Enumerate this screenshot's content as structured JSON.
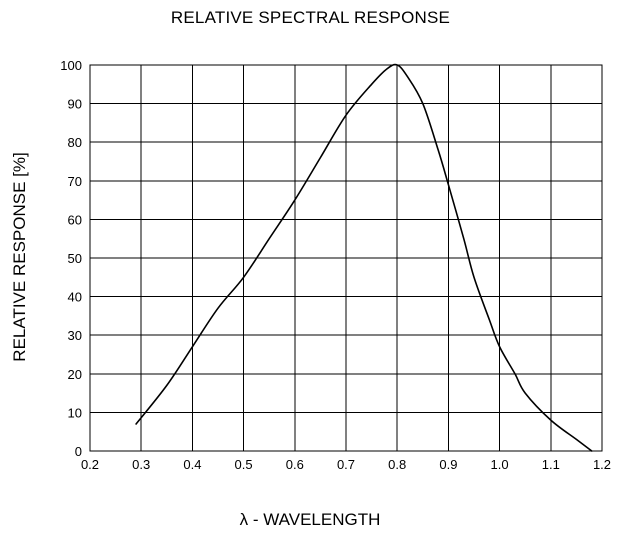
{
  "chart_data": {
    "type": "line",
    "title": "RELATIVE SPECTRAL RESPONSE",
    "xlabel": "λ  - WAVELENGTH",
    "ylabel": "RELATIVE RESPONSE [%]",
    "xlim": [
      0.2,
      1.2
    ],
    "ylim": [
      0,
      100
    ],
    "x_ticks": [
      "0.2",
      "0.3",
      "0.4",
      "0.5",
      "0.6",
      "0.7",
      "0.8",
      "0.9",
      "1.0",
      "1.1",
      "1.2"
    ],
    "y_ticks": [
      "0",
      "10",
      "20",
      "30",
      "40",
      "50",
      "60",
      "70",
      "80",
      "90",
      "100"
    ],
    "grid": true,
    "series": [
      {
        "x": [
          0.29,
          0.35,
          0.4,
          0.45,
          0.5,
          0.55,
          0.6,
          0.65,
          0.7,
          0.75,
          0.78,
          0.8,
          0.82,
          0.85,
          0.88,
          0.9,
          0.93,
          0.95,
          0.98,
          1.0,
          1.03,
          1.05,
          1.1,
          1.15,
          1.18
        ],
        "y": [
          7,
          17,
          27,
          37,
          45,
          55,
          65,
          76,
          87,
          95,
          99,
          100,
          97,
          90,
          78,
          69,
          55,
          45,
          34,
          27,
          20,
          15,
          8,
          3,
          0
        ]
      }
    ]
  }
}
